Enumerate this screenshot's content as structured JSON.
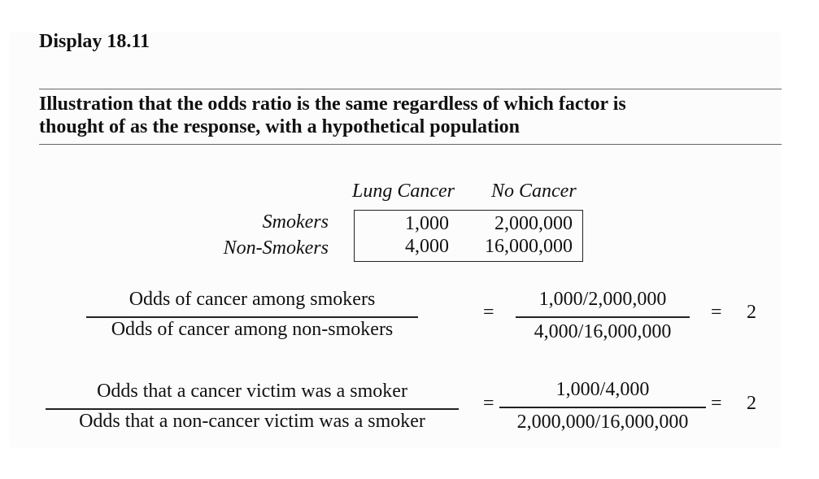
{
  "display": {
    "label": "Display 18.11",
    "caption_line1": "Illustration that the odds ratio is the same regardless of which factor is",
    "caption_line2": "thought of as the response, with a hypothetical population"
  },
  "table": {
    "col_headers": [
      "Lung Cancer",
      "No Cancer"
    ],
    "rows": [
      {
        "label": "Smokers",
        "values": [
          "1,000",
          "2,000,000"
        ]
      },
      {
        "label": "Non-Smokers",
        "values": [
          "4,000",
          "16,000,000"
        ]
      }
    ]
  },
  "equations": [
    {
      "lhs_numerator": "Odds of cancer among smokers",
      "lhs_denominator": "Odds of cancer among non-smokers",
      "equals1": "=",
      "rhs_numerator": "1,000/2,000,000",
      "rhs_denominator": "4,000/16,000,000",
      "equals2": "=",
      "result": "2"
    },
    {
      "lhs_numerator": "Odds that a cancer victim was a smoker",
      "lhs_denominator": "Odds that a non-cancer victim was a smoker",
      "equals1": "=",
      "rhs_numerator": "1,000/4,000",
      "rhs_denominator": "2,000,000/16,000,000",
      "equals2": "=",
      "result": "2"
    }
  ]
}
